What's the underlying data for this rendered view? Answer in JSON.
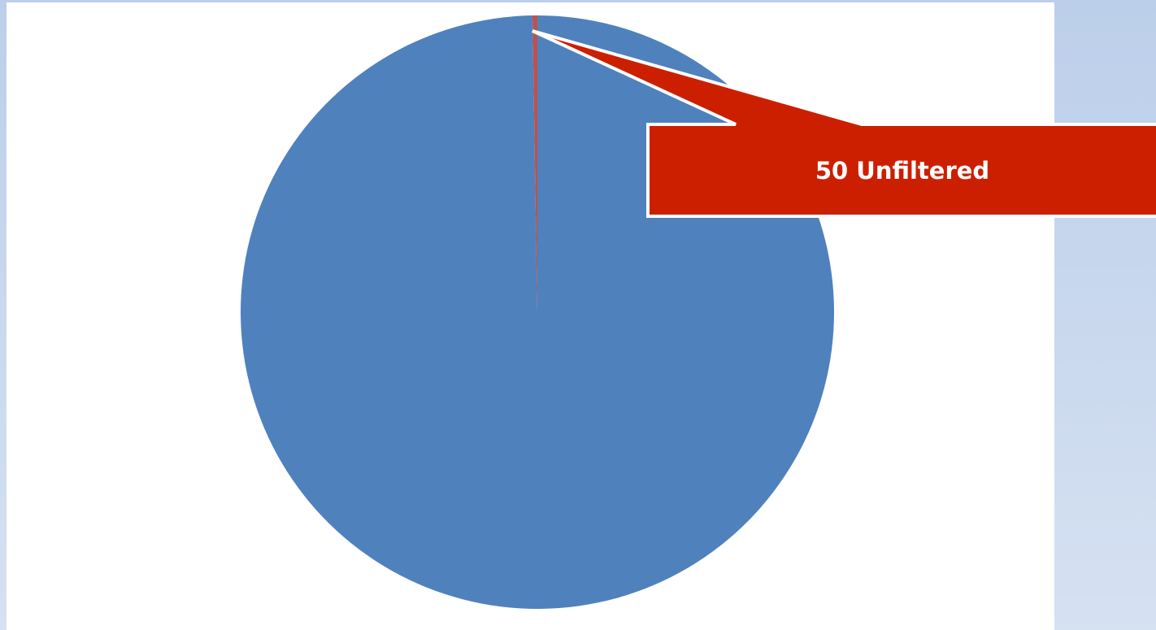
{
  "chart_data": {
    "type": "pie",
    "values": [
      19000,
      50
    ],
    "value_labels": [
      null,
      "50 Unfiltered"
    ],
    "colors": [
      "#4f81bd",
      "#c0504d"
    ],
    "callout_color": "#cc1f00"
  }
}
